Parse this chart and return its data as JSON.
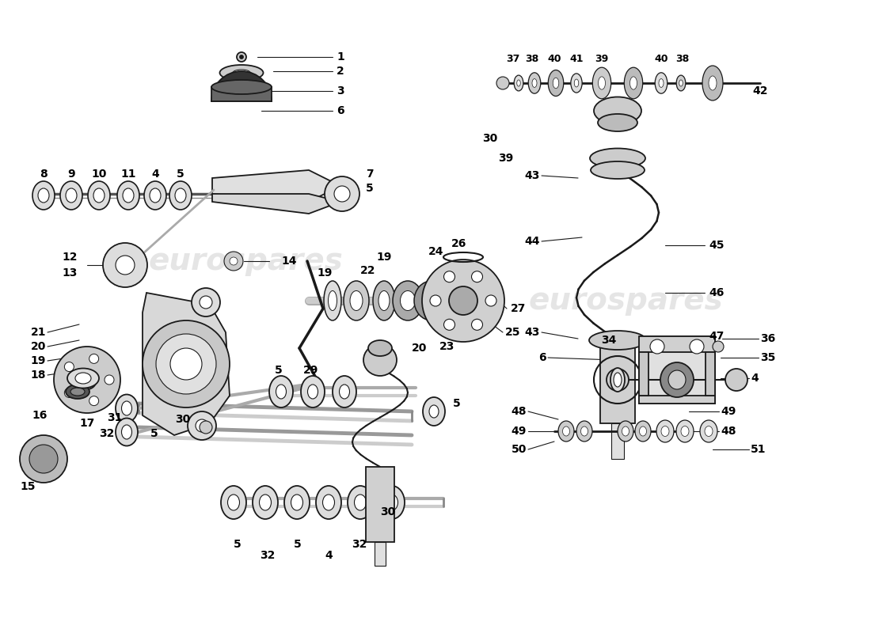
{
  "background_color": "#ffffff",
  "line_color": "#1a1a1a",
  "label_color": "#000000",
  "watermark_color": "#cccccc",
  "fig_width": 11.0,
  "fig_height": 8.0,
  "dpi": 100,
  "xlim": [
    0,
    1100
  ],
  "ylim": [
    0,
    800
  ]
}
